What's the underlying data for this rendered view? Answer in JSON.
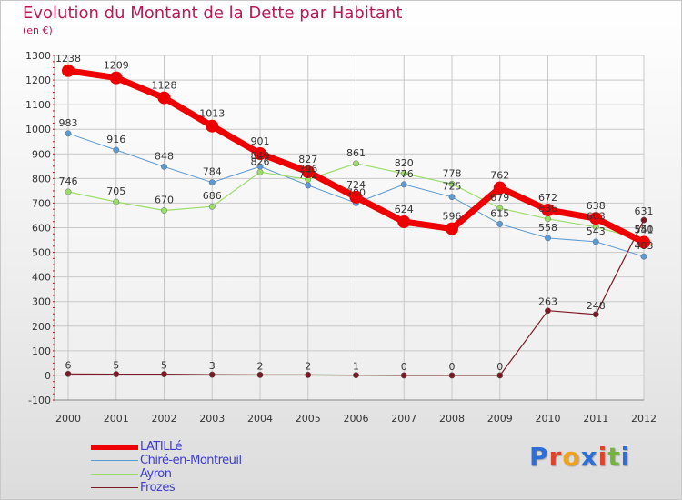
{
  "header": {
    "title": "Evolution du Montant de la Dette par Habitant",
    "unit": "(en €)"
  },
  "logo": {
    "letters": [
      "P",
      "r",
      "o",
      "x",
      "i",
      "t",
      "i"
    ],
    "colors": [
      "#2d6fd6",
      "#e0432b",
      "#f0a21a",
      "#2d6fd6",
      "#e0432b",
      "#74b43c",
      "#2d6fd6"
    ]
  },
  "chart_data": {
    "type": "line",
    "x": [
      2000,
      2001,
      2002,
      2003,
      2004,
      2005,
      2006,
      2007,
      2008,
      2009,
      2010,
      2011,
      2012
    ],
    "xticks": [
      "2000",
      "2001",
      "2002",
      "2003",
      "2004",
      "2005",
      "2006",
      "2007",
      "2008",
      "2009",
      "2010",
      "2011",
      "2012"
    ],
    "ylim": [
      -100,
      1300
    ],
    "yticks": [
      -100,
      0,
      100,
      200,
      300,
      400,
      500,
      600,
      700,
      800,
      900,
      1000,
      1100,
      1200,
      1300
    ],
    "grid": true,
    "legend_position": "bottom-left",
    "series": [
      {
        "name": "LATILLé",
        "color": "#ee0000",
        "values": [
          1238,
          1209,
          1128,
          1013,
          901,
          827,
          724,
          624,
          596,
          762,
          672,
          638,
          541
        ]
      },
      {
        "name": "Chiré-en-Montreuil",
        "color": "#5b9bd5",
        "values": [
          983,
          916,
          848,
          784,
          849,
          772,
          700,
          776,
          725,
          615,
          558,
          543,
          483
        ]
      },
      {
        "name": "Ayron",
        "color": "#99dd66",
        "values": [
          746,
          705,
          670,
          686,
          826,
          796,
          861,
          820,
          778,
          679,
          636,
          603,
          550
        ]
      },
      {
        "name": "Frozes",
        "color": "#7b1a24",
        "values": [
          6,
          5,
          5,
          3,
          2,
          2,
          1,
          0,
          0,
          0,
          263,
          248,
          631
        ]
      }
    ]
  }
}
